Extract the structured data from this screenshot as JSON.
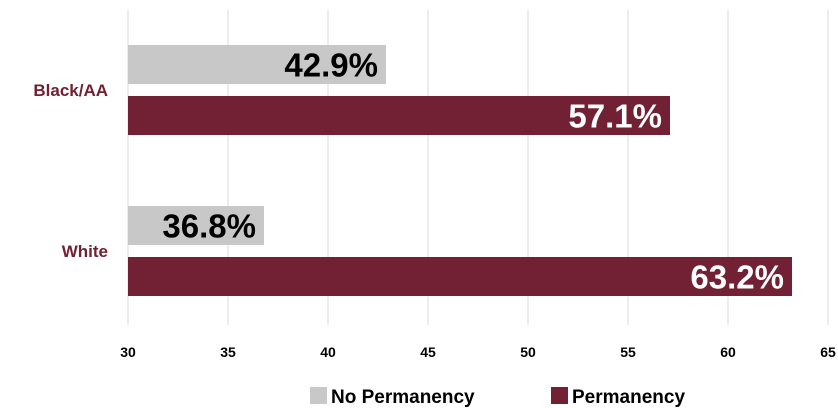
{
  "chart_data": {
    "type": "bar",
    "orientation": "horizontal",
    "categories": [
      "Black/AA",
      "White"
    ],
    "series": [
      {
        "name": "No Permanency",
        "values": [
          42.9,
          36.8
        ],
        "labels": [
          "42.9%",
          "36.8%"
        ],
        "color": "#c8c8c8",
        "label_color": "#000000"
      },
      {
        "name": "Permanency",
        "values": [
          57.1,
          63.2
        ],
        "labels": [
          "57.1%",
          "63.2%"
        ],
        "color": "#722033",
        "label_color": "#ffffff"
      }
    ],
    "xlim": [
      30,
      65
    ],
    "xticks": [
      "30",
      "35",
      "40",
      "45",
      "50",
      "55",
      "60",
      "65"
    ],
    "category_label_color": "#722033",
    "grid": "vertical",
    "legend_position": "bottom"
  }
}
